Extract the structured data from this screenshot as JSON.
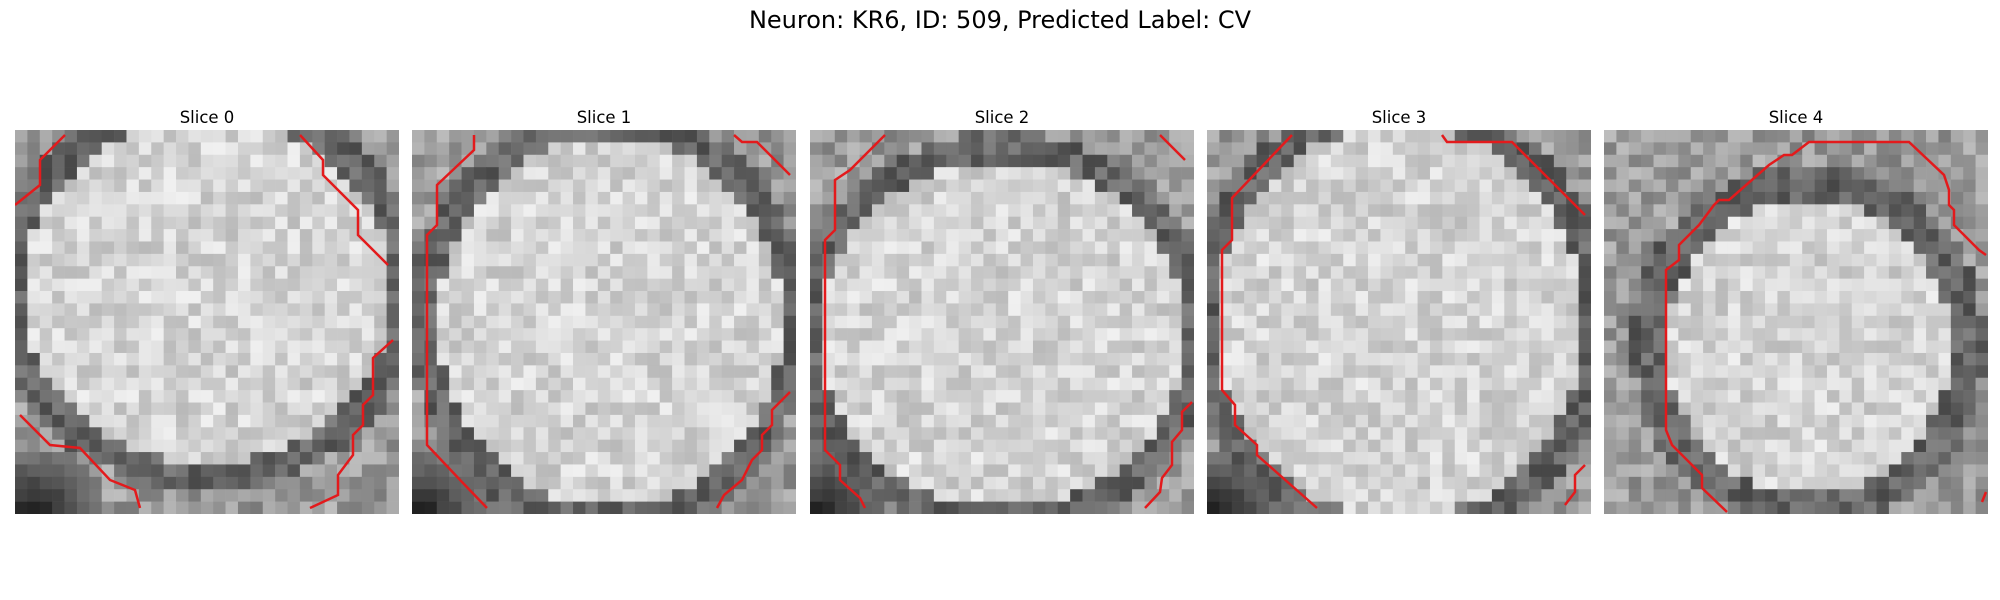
{
  "figure": {
    "title": "Neuron: KR6, ID: 509, Predicted Label: CV"
  },
  "panels": [
    {
      "title": "Slice 0",
      "image": "grayscale-cell-slice"
    },
    {
      "title": "Slice 1",
      "image": "grayscale-cell-slice"
    },
    {
      "title": "Slice 2",
      "image": "grayscale-cell-slice"
    },
    {
      "title": "Slice 3",
      "image": "grayscale-cell-slice"
    },
    {
      "title": "Slice 4",
      "image": "grayscale-cell-slice"
    }
  ],
  "colors": {
    "contour": "#e31a1c",
    "background": "#ffffff"
  }
}
